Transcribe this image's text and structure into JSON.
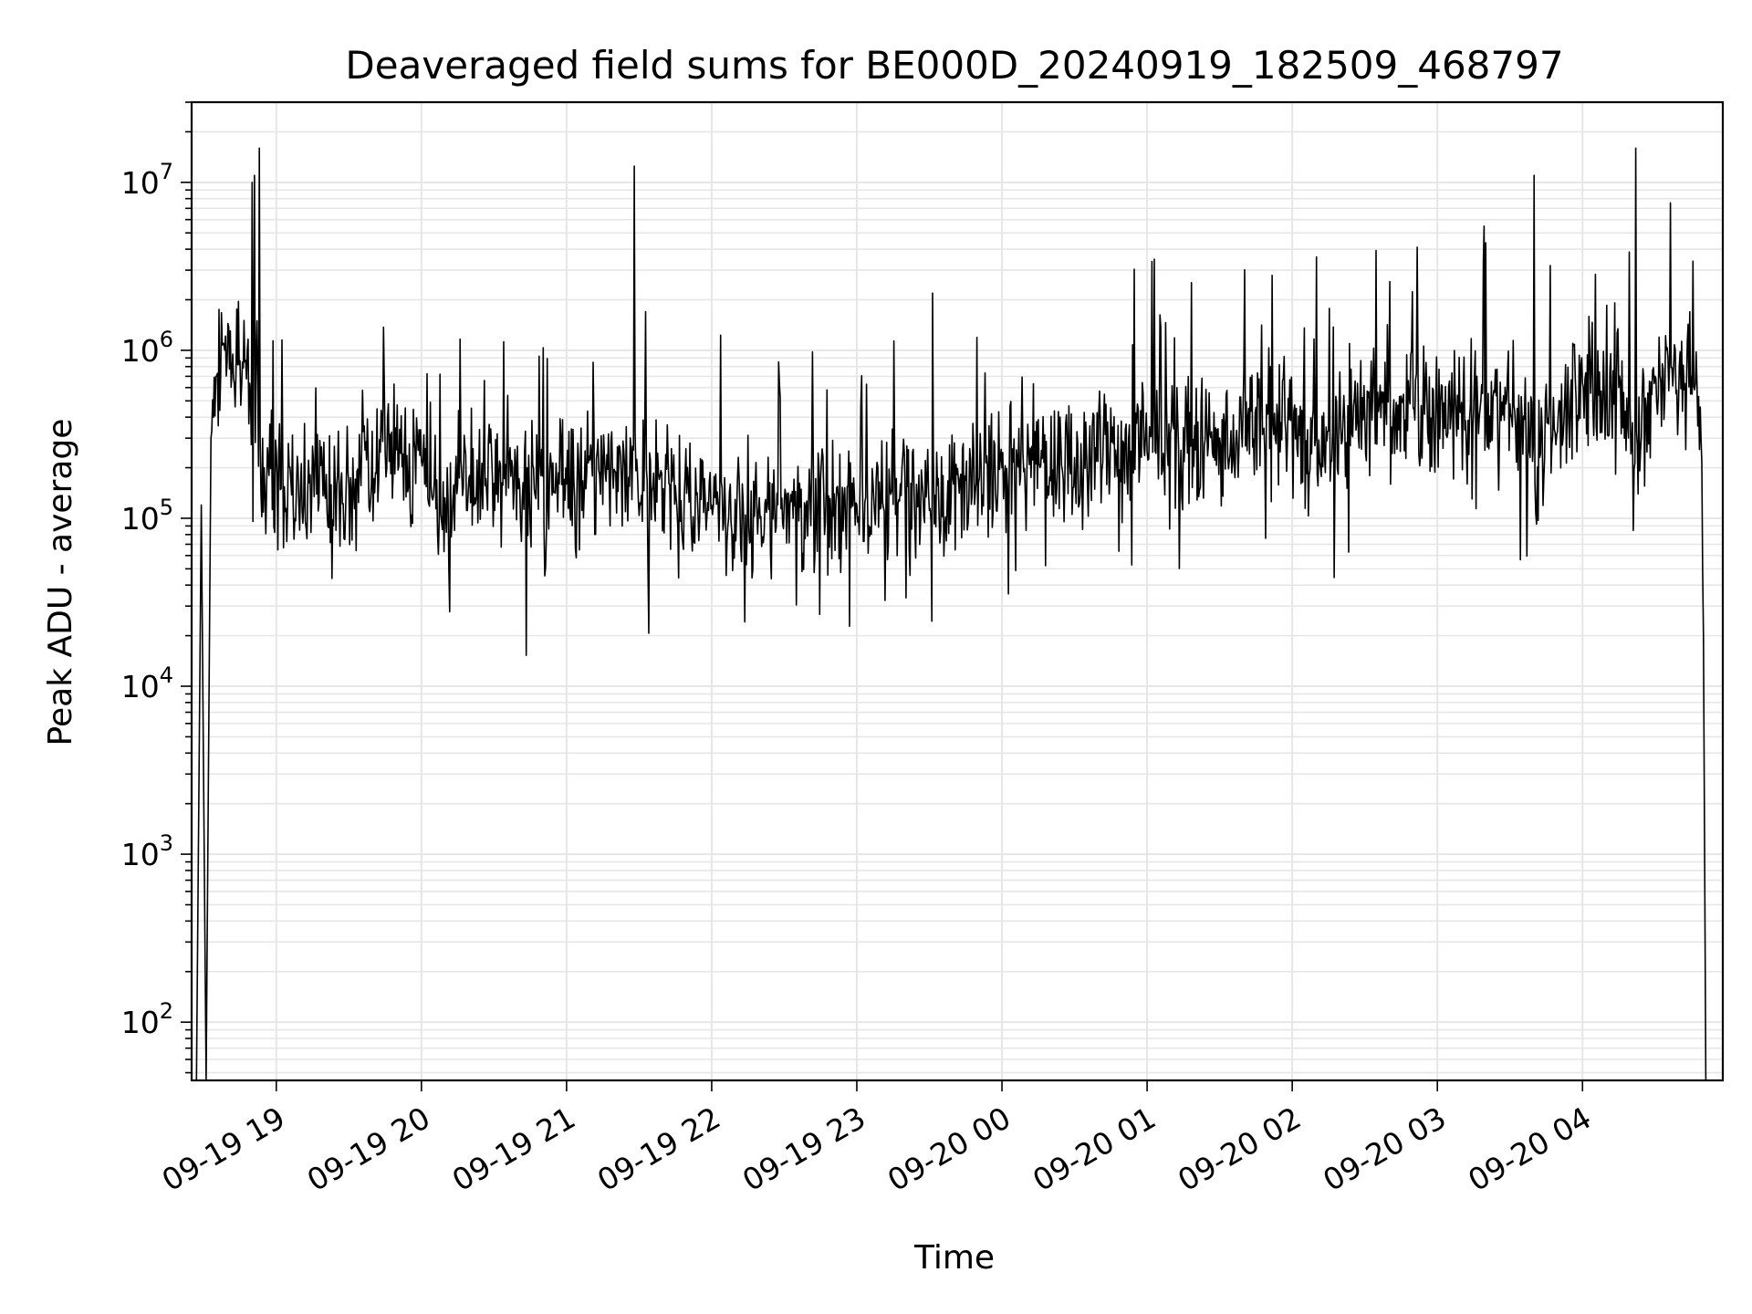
{
  "chart_data": {
    "type": "line",
    "title": "Deaveraged field sums for BE000D_20240919_182509_468797",
    "xlabel": "Time",
    "ylabel": "Peak ADU - average",
    "yscale": "log",
    "ylim": [
      45,
      30000000
    ],
    "xlim": [
      "09-19 18:25",
      "09-20 04:58"
    ],
    "grid": "major and minor, light gray",
    "line_color": "#000000",
    "x_ticks": [
      "09-19 19",
      "09-19 20",
      "09-19 21",
      "09-19 22",
      "09-19 23",
      "09-20 00",
      "09-20 01",
      "09-20 02",
      "09-20 03",
      "09-20 04"
    ],
    "y_ticks": [
      {
        "base": "10",
        "exp": "2"
      },
      {
        "base": "10",
        "exp": "3"
      },
      {
        "base": "10",
        "exp": "4"
      },
      {
        "base": "10",
        "exp": "5"
      },
      {
        "base": "10",
        "exp": "6"
      },
      {
        "base": "10",
        "exp": "7"
      }
    ],
    "series": [
      {
        "x": [
          "09-19 18:27",
          "09-19 18:29",
          "09-19 18:31",
          "09-19 18:33",
          "09-19 18:35",
          "09-19 18:38",
          "09-19 18:42",
          "09-19 18:46",
          "09-19 18:48",
          "09-19 18:50",
          "09-19 18:51",
          "09-19 18:52",
          "09-19 18:53",
          "09-19 18:55",
          "09-19 18:57",
          "09-19 19:02",
          "09-19 19:10",
          "09-19 19:20",
          "09-19 19:30",
          "09-19 19:45",
          "09-19 20:00",
          "09-19 20:10",
          "09-19 20:20",
          "09-19 20:40",
          "09-19 21:00",
          "09-19 21:20",
          "09-19 21:28",
          "09-19 21:40",
          "09-19 22:00",
          "09-19 22:20",
          "09-19 22:40",
          "09-19 23:00",
          "09-19 23:20",
          "09-19 23:40",
          "09-20 00:00",
          "09-20 00:30",
          "09-20 01:00",
          "09-20 01:30",
          "09-20 02:00",
          "09-20 02:10",
          "09-20 02:30",
          "09-20 02:50",
          "09-20 03:00",
          "09-20 03:15",
          "09-20 03:30",
          "09-20 03:40",
          "09-20 03:55",
          "09-20 04:05",
          "09-20 04:15",
          "09-20 04:22",
          "09-20 04:30",
          "09-20 04:40",
          "09-20 04:45",
          "09-20 04:49",
          "09-20 04:50",
          "09-20 04:51"
        ],
        "y": [
          45,
          120000,
          45,
          300000,
          700000,
          1100000,
          950000,
          850000,
          1000000,
          10000000,
          11000000,
          1500000,
          16000000,
          200000,
          180000,
          150000,
          150000,
          140000,
          160000,
          250000,
          220000,
          110000,
          180000,
          150000,
          160000,
          190000,
          12500000,
          150000,
          120000,
          100000,
          120000,
          120000,
          140000,
          160000,
          200000,
          230000,
          250000,
          300000,
          380000,
          3600000,
          400000,
          450000,
          420000,
          450000,
          480000,
          11000000,
          500000,
          550000,
          600000,
          16000000,
          700000,
          800000,
          700000,
          300000,
          20000,
          45
        ]
      }
    ]
  }
}
